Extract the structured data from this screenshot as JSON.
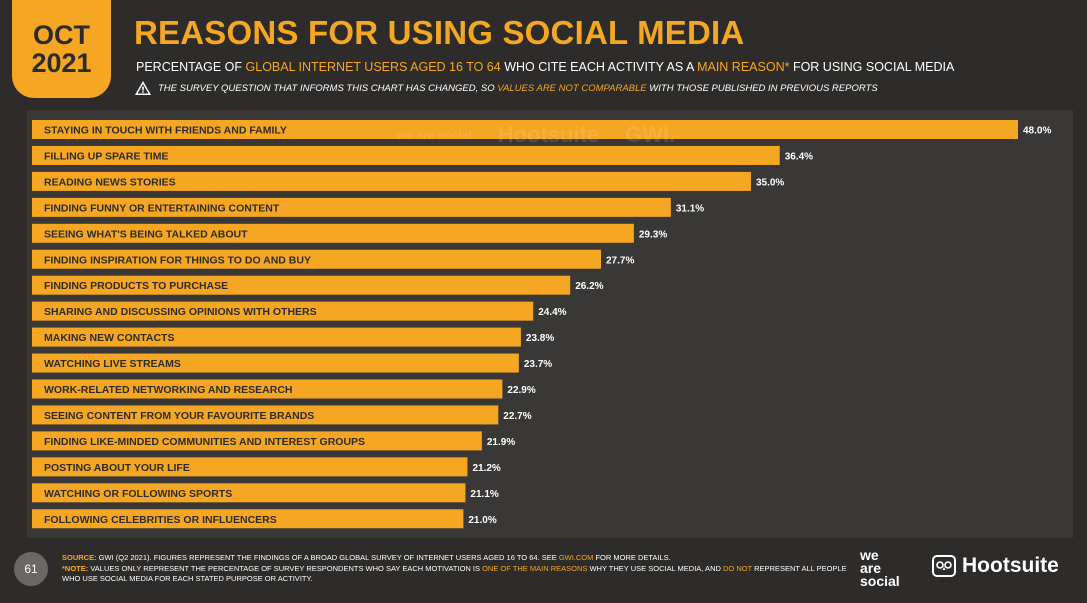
{
  "header": {
    "date_month": "OCT",
    "date_year": "2021",
    "title": "REASONS FOR USING SOCIAL MEDIA",
    "subtitle_parts": [
      "PERCENTAGE OF ",
      "GLOBAL INTERNET USERS AGED 16 TO 64",
      " WHO CITE EACH ACTIVITY AS A ",
      "MAIN REASON*",
      " FOR USING SOCIAL MEDIA"
    ],
    "warning_parts": [
      "THE SURVEY QUESTION THAT INFORMS THIS CHART HAS CHANGED, SO ",
      "VALUES ARE NOT COMPARABLE",
      " WITH THOSE PUBLISHED IN PREVIOUS REPORTS"
    ],
    "warning_icon": "warning-triangle-icon"
  },
  "watermark": {
    "wearesocial": "we are social",
    "hootsuite": "Hootsuite",
    "gwi": "GWI."
  },
  "footer": {
    "page_number": "61",
    "source_label": "SOURCE:",
    "source_parts": [
      " GWI (Q2 2021). FIGURES REPRESENT THE FINDINGS OF A BROAD GLOBAL SURVEY OF INTERNET USERS AGED 16 TO 64. SEE ",
      "GWI.COM",
      " FOR MORE DETAILS."
    ],
    "note_label": "*NOTE:",
    "note_parts": [
      " VALUES ONLY REPRESENT THE PERCENTAGE OF SURVEY RESPONDENTS WHO SAY EACH MOTIVATION IS ",
      "ONE OF THE MAIN REASONS",
      " WHY THEY USE SOCIAL MEDIA, AND ",
      "DO NOT",
      " REPRESENT ALL PEOPLE WHO USE SOCIAL MEDIA FOR EACH STATED PURPOSE OR ACTIVITY."
    ],
    "logo_was": [
      "we",
      "are",
      "social"
    ],
    "logo_hootsuite": "Hootsuite",
    "owl_icon": "owl-icon"
  },
  "colors": {
    "accent": "#f5a623",
    "background": "#2e2c2a",
    "panel": "#3a3836",
    "text": "#ffffff"
  },
  "chart_data": {
    "type": "bar",
    "orientation": "horizontal",
    "categories": [
      "STAYING IN TOUCH WITH FRIENDS AND FAMILY",
      "FILLING UP SPARE TIME",
      "READING NEWS STORIES",
      "FINDING FUNNY OR ENTERTAINING CONTENT",
      "SEEING WHAT'S BEING TALKED ABOUT",
      "FINDING INSPIRATION FOR THINGS TO DO AND BUY",
      "FINDING PRODUCTS TO PURCHASE",
      "SHARING AND DISCUSSING OPINIONS WITH OTHERS",
      "MAKING NEW CONTACTS",
      "WATCHING LIVE STREAMS",
      "WORK-RELATED NETWORKING AND RESEARCH",
      "SEEING CONTENT FROM YOUR FAVOURITE BRANDS",
      "FINDING LIKE-MINDED COMMUNITIES AND INTEREST GROUPS",
      "POSTING ABOUT YOUR LIFE",
      "WATCHING OR FOLLOWING SPORTS",
      "FOLLOWING CELEBRITIES OR INFLUENCERS"
    ],
    "values": [
      48.0,
      36.4,
      35.0,
      31.1,
      29.3,
      27.7,
      26.2,
      24.4,
      23.8,
      23.7,
      22.9,
      22.7,
      21.9,
      21.2,
      21.1,
      21.0
    ],
    "value_labels": [
      "48.0%",
      "36.4%",
      "35.0%",
      "31.1%",
      "29.3%",
      "27.7%",
      "26.2%",
      "24.4%",
      "23.8%",
      "23.7%",
      "22.9%",
      "22.7%",
      "21.9%",
      "21.2%",
      "21.1%",
      "21.0%"
    ],
    "xlim": [
      0,
      48
    ],
    "grid": false,
    "bar_color": "#f5a623"
  }
}
